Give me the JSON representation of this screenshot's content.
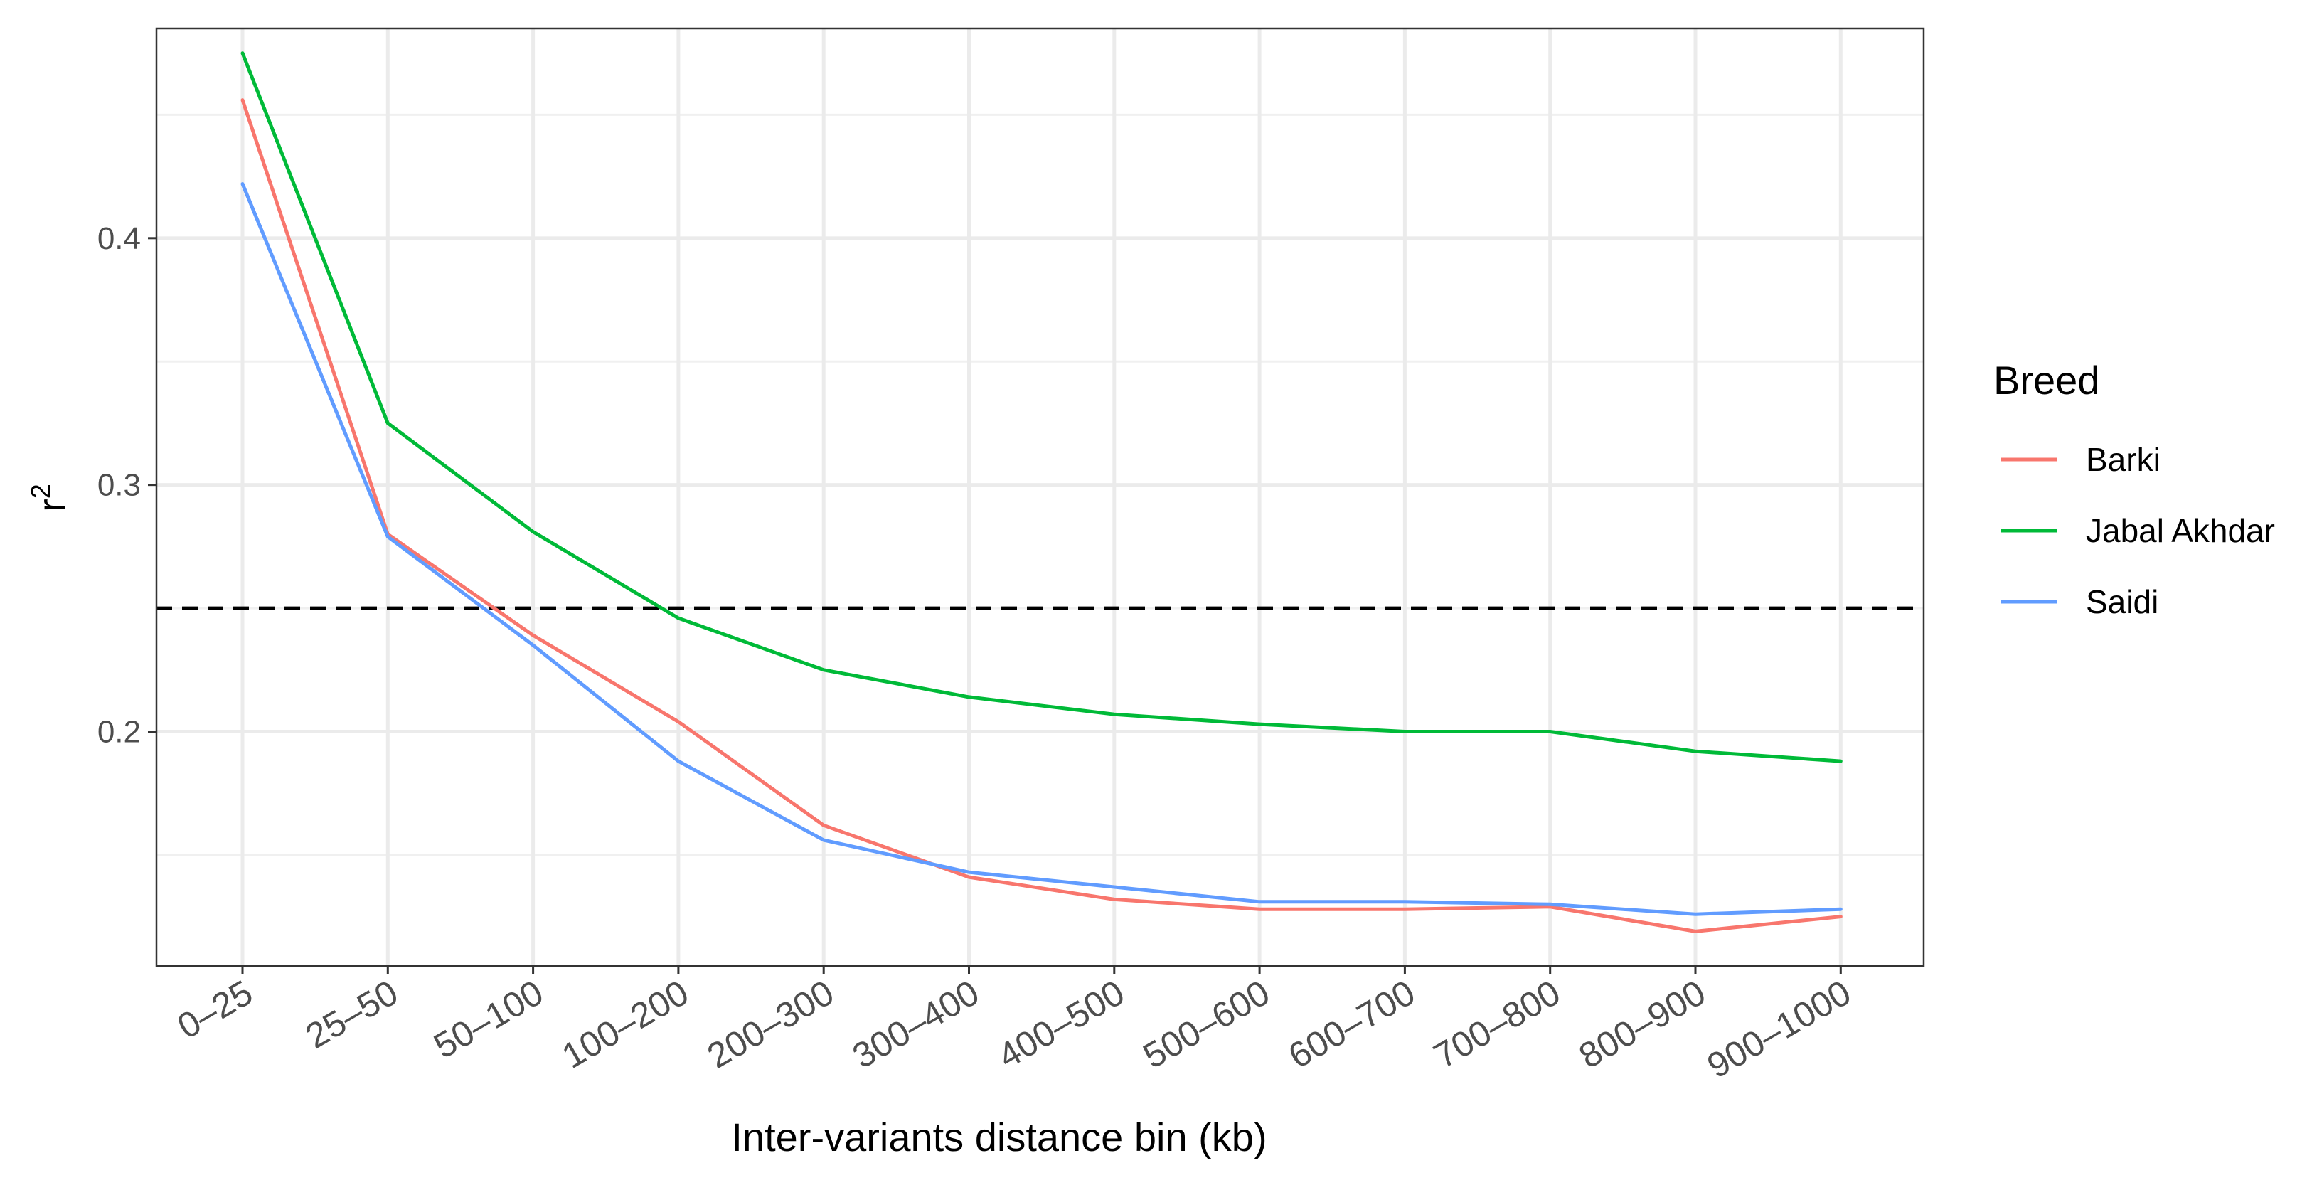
{
  "chart_data": {
    "type": "line",
    "categories": [
      "0–25",
      "25–50",
      "50–100",
      "100–200",
      "200–300",
      "300–400",
      "400–500",
      "500–600",
      "600–700",
      "700–800",
      "800–900",
      "900–1000"
    ],
    "series": [
      {
        "name": "Barki",
        "color": "#F8766D",
        "values": [
          0.456,
          0.28,
          0.239,
          0.204,
          0.162,
          0.141,
          0.132,
          0.128,
          0.128,
          0.129,
          0.119,
          0.125
        ]
      },
      {
        "name": "Jabal Akhdar",
        "color": "#00BA38",
        "values": [
          0.475,
          0.325,
          0.281,
          0.246,
          0.225,
          0.214,
          0.207,
          0.203,
          0.2,
          0.2,
          0.192,
          0.188
        ]
      },
      {
        "name": "Saidi",
        "color": "#619CFF",
        "values": [
          0.422,
          0.279,
          0.235,
          0.188,
          0.156,
          0.143,
          0.137,
          0.131,
          0.131,
          0.13,
          0.126,
          0.128
        ]
      }
    ],
    "reference_line": {
      "y": 0.25,
      "style": "dashed",
      "color": "#000000"
    },
    "y_ticks": [
      "0.2",
      "0.3",
      "0.4"
    ],
    "y_tick_values": [
      0.2,
      0.3,
      0.4
    ],
    "y_minor_values": [
      0.15,
      0.25,
      0.35,
      0.45
    ],
    "ylim": [
      0.105,
      0.485
    ],
    "xlabel": "Inter-variants distance bin (kb)",
    "ylabel": "r",
    "ylabel_superscript": "2",
    "legend": {
      "title": "Breed",
      "position": "right"
    },
    "grid": true,
    "theme": "bw"
  }
}
